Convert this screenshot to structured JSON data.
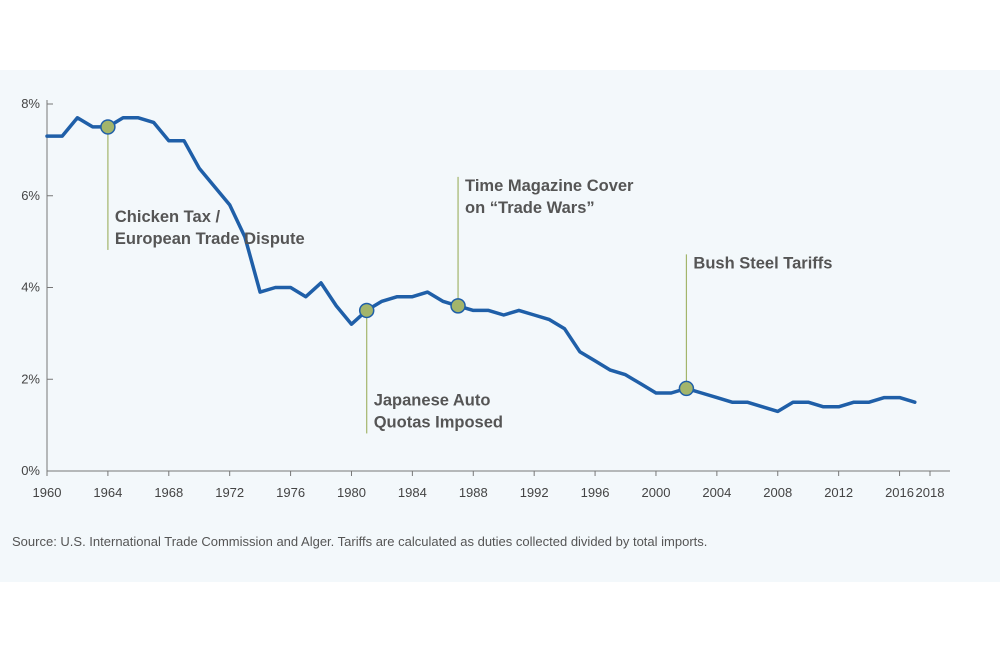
{
  "chart_data": {
    "type": "line",
    "title": "",
    "xlabel": "",
    "ylabel": "",
    "xlim": [
      1960,
      2018
    ],
    "ylim": [
      0,
      8
    ],
    "grid": false,
    "legend": "none",
    "line_color": "#1f5fa8",
    "marker_color": "#a3b56b",
    "annotation_line_color": "#a3b56b",
    "x_ticks": [
      1960,
      1964,
      1968,
      1972,
      1976,
      1980,
      1984,
      1988,
      1992,
      1996,
      2000,
      2004,
      2008,
      2012,
      2016,
      2018
    ],
    "x_tick_labels": [
      "1960",
      "1964",
      "1968",
      "1972",
      "1976",
      "1980",
      "1984",
      "1988",
      "1992",
      "1996",
      "2000",
      "2004",
      "2008",
      "2012",
      "2016",
      "2018"
    ],
    "y_ticks": [
      0,
      2,
      4,
      6,
      8
    ],
    "y_tick_labels": [
      "0%",
      "2%",
      "4%",
      "6%",
      "8%"
    ],
    "series": [
      {
        "x": [
          1960,
          1961,
          1962,
          1963,
          1964,
          1965,
          1966,
          1967,
          1968,
          1969,
          1970,
          1971,
          1972,
          1973,
          1974,
          1975,
          1976,
          1977,
          1978,
          1979,
          1980,
          1981,
          1982,
          1983,
          1984,
          1985,
          1986,
          1987,
          1988,
          1989,
          1990,
          1991,
          1992,
          1993,
          1994,
          1995,
          1996,
          1997,
          1998,
          1999,
          2000,
          2001,
          2002,
          2003,
          2004,
          2005,
          2006,
          2007,
          2008,
          2009,
          2010,
          2011,
          2012,
          2013,
          2014,
          2015,
          2016,
          2017
        ],
        "values": [
          7.3,
          7.3,
          7.7,
          7.5,
          7.5,
          7.7,
          7.7,
          7.6,
          7.2,
          7.2,
          6.6,
          6.2,
          5.8,
          5.1,
          3.9,
          4.0,
          4.0,
          3.8,
          4.1,
          3.6,
          3.2,
          3.5,
          3.7,
          3.8,
          3.8,
          3.9,
          3.7,
          3.6,
          3.5,
          3.5,
          3.4,
          3.5,
          3.4,
          3.3,
          3.1,
          2.6,
          2.4,
          2.2,
          2.1,
          1.9,
          1.7,
          1.7,
          1.8,
          1.7,
          1.6,
          1.5,
          1.5,
          1.4,
          1.3,
          1.5,
          1.5,
          1.4,
          1.4,
          1.5,
          1.5,
          1.6,
          1.6,
          1.5
        ]
      }
    ],
    "annotations": [
      {
        "label_lines": [
          "Chicken Tax /",
          "European Trade Dispute"
        ],
        "year": 1964,
        "value": 7.5,
        "label_side": "below"
      },
      {
        "label_lines": [
          "Japanese Auto",
          "Quotas Imposed"
        ],
        "year": 1981,
        "value": 3.5,
        "label_side": "below"
      },
      {
        "label_lines": [
          "Time Magazine Cover",
          "on “Trade Wars”"
        ],
        "year": 1987,
        "value": 3.6,
        "label_side": "above"
      },
      {
        "label_lines": [
          "Bush Steel Tariffs"
        ],
        "year": 2002,
        "value": 1.8,
        "label_side": "above"
      }
    ]
  },
  "source_note": "Source: U.S. International Trade Commission and Alger. Tariffs are calculated as duties collected divided by total imports."
}
